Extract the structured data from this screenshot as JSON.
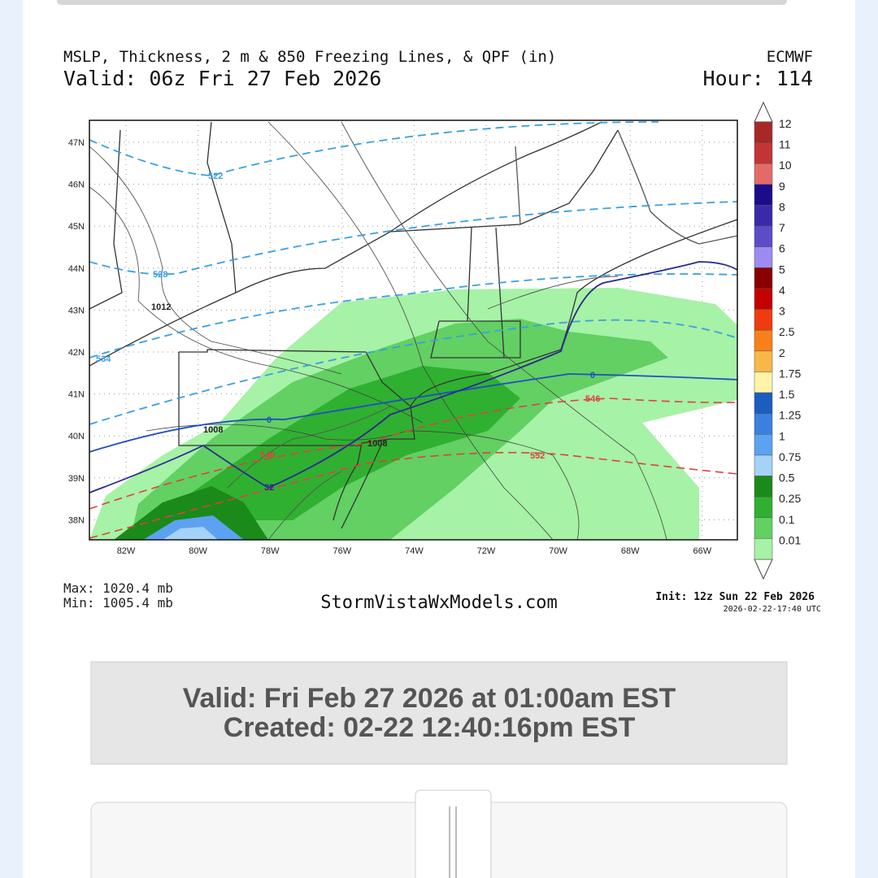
{
  "header": {
    "title": "MSLP, Thickness, 2 m & 850 Freezing Lines, & QPF (in)",
    "model": "ECMWF",
    "valid": "Valid: 06z Fri 27 Feb 2026",
    "hour": "Hour: 114"
  },
  "map": {
    "lat_labels": [
      "47N",
      "46N",
      "45N",
      "44N",
      "43N",
      "42N",
      "41N",
      "40N",
      "39N",
      "38N"
    ],
    "lon_labels": [
      "82W",
      "80W",
      "78W",
      "76W",
      "74W",
      "72W",
      "70W",
      "68W",
      "66W"
    ],
    "contour_labels": [
      "522",
      "528",
      "534",
      "1012",
      "1008",
      "1008",
      "0",
      "0",
      "546",
      "546",
      "552",
      "32"
    ]
  },
  "colorbar": [
    {
      "label": "12",
      "color": "#a82828"
    },
    {
      "label": "11",
      "color": "#c43434"
    },
    {
      "label": "10",
      "color": "#e46a6a"
    },
    {
      "label": "9",
      "color": "#1c0c8c"
    },
    {
      "label": "8",
      "color": "#3a2aaa"
    },
    {
      "label": "7",
      "color": "#5c4cc8"
    },
    {
      "label": "6",
      "color": "#9c8cf2"
    },
    {
      "label": "5",
      "color": "#8a0000"
    },
    {
      "label": "4",
      "color": "#c40000"
    },
    {
      "label": "3",
      "color": "#ee3c10"
    },
    {
      "label": "2.5",
      "color": "#f8801a"
    },
    {
      "label": "2",
      "color": "#f8b848"
    },
    {
      "label": "1.75",
      "color": "#fff4a8"
    },
    {
      "label": "1.5",
      "color": "#1a5ec0"
    },
    {
      "label": "1.25",
      "color": "#3a80e0"
    },
    {
      "label": "1",
      "color": "#5ca2f0"
    },
    {
      "label": "0.75",
      "color": "#a4d2f8"
    },
    {
      "label": "0.5",
      "color": "#1a8a1a"
    },
    {
      "label": "0.25",
      "color": "#30b030"
    },
    {
      "label": "0.1",
      "color": "#62d062"
    },
    {
      "label": "0.01",
      "color": "#a6f2a6"
    }
  ],
  "footer": {
    "max": "Max: 1020.4 mb",
    "min": "Min: 1005.4 mb",
    "site": "StormVistaWxModels.com",
    "init": "Init: 12z Sun 22 Feb 2026",
    "stamp": "2026-02-22-17:40 UTC"
  },
  "info": {
    "valid": "Valid: Fri Feb 27 2026 at 01:00am EST",
    "created": "Created: 02-22 12:40:16pm EST"
  }
}
